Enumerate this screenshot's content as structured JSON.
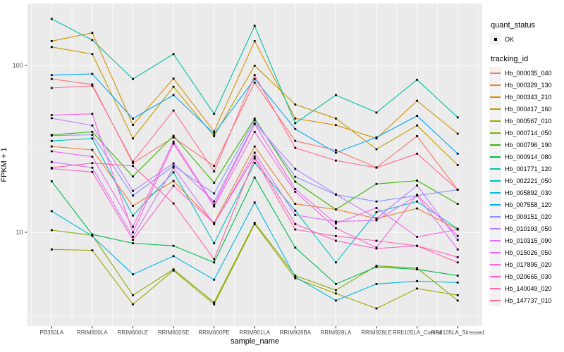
{
  "panel": {
    "bg": "#EBEBEB",
    "grid_color": "#FFFFFF",
    "tick_color": "#333333",
    "tick_label_color": "#4D4D4D",
    "legend_key_bg": "#F2F2F2",
    "point_color": "#000000"
  },
  "axes": {
    "x_title": "sample_name",
    "y_title": "FPKM + 1"
  },
  "legend": {
    "quant_status": {
      "title": "quant_status",
      "entries": [
        {
          "label": "OK",
          "marker": "black-point"
        }
      ]
    },
    "tracking_id_title": "tracking_id"
  },
  "chart_data": {
    "type": "line",
    "title": "",
    "xlabel": "sample_name",
    "ylabel": "FPKM + 1",
    "y_scale": "log10",
    "ylim": [
      2.8,
      235
    ],
    "yticks_major": [
      100,
      10
    ],
    "yticks_minor": [
      316.23,
      31.623,
      3.1623
    ],
    "grid": true,
    "legend_position": "right",
    "x_categories": [
      "PB350LA",
      "RRIM600LA",
      "RRIM600LE",
      "RRIM600SE",
      "RRIM600PE",
      "RRIM901LA",
      "RRIM928BA",
      "RRIM928LA",
      "RRIM928LE",
      "RRII105LA_Control",
      "RRII105LA_Stressed"
    ],
    "series": [
      {
        "name": "Hb_000035_040",
        "color": "#F8766D",
        "values": [
          83,
          77,
          26,
          37,
          25,
          79,
          35.3,
          31,
          24.5,
          37.7,
          18
        ]
      },
      {
        "name": "Hb_000329_130",
        "color": "#EA8331",
        "values": [
          32.7,
          31.2,
          14.4,
          20.3,
          11.4,
          32.7,
          14.8,
          13.7,
          12.1,
          13.9,
          10.4
        ]
      },
      {
        "name": "Hb_000343_210",
        "color": "#D89000",
        "values": [
          140,
          157,
          44,
          83.4,
          40.2,
          140,
          48.1,
          43.9,
          36.5,
          61.4,
          39
        ]
      },
      {
        "name": "Hb_000417_160",
        "color": "#C09B00",
        "values": [
          129,
          117,
          36.5,
          74.6,
          37.7,
          99.7,
          58.4,
          48.1,
          31.5,
          43.7,
          25.3
        ]
      },
      {
        "name": "Hb_000567_010",
        "color": "#A3A500",
        "values": [
          7.9,
          7.8,
          3.7,
          5.9,
          3.7,
          11.2,
          5.3,
          4.3,
          3.5,
          4.6,
          4.2
        ]
      },
      {
        "name": "Hb_000714_050",
        "color": "#7CAE00",
        "values": [
          10.3,
          9.6,
          4.2,
          6.0,
          3.8,
          11.4,
          5.5,
          4.5,
          6.3,
          6.1,
          3.9
        ]
      },
      {
        "name": "Hb_000796_190",
        "color": "#39B600",
        "values": [
          38.4,
          40,
          21.6,
          37.9,
          19.8,
          48.1,
          20.1,
          13.7,
          19.5,
          20.4,
          14.8
        ]
      },
      {
        "name": "Hb_000914_080",
        "color": "#00BB4E",
        "values": [
          20.2,
          9.7,
          8.6,
          8.3,
          6.6,
          21.3,
          8.1,
          4.9,
          6.2,
          6.0,
          5.5
        ]
      },
      {
        "name": "Hb_001771_120",
        "color": "#00C1A3",
        "values": [
          190,
          142,
          83,
          117,
          51.3,
          173,
          45.1,
          66.5,
          52.2,
          82.1,
          48.8
        ]
      },
      {
        "name": "Hb_002221_050",
        "color": "#00BFC4",
        "values": [
          35.3,
          36.5,
          12.6,
          22.9,
          8.6,
          26.1,
          13.5,
          6.6,
          13.2,
          15.3,
          10.5
        ]
      },
      {
        "name": "Hb_005892_030",
        "color": "#00B8E5",
        "values": [
          13.4,
          9.5,
          5.6,
          7.2,
          5.2,
          15.1,
          5.4,
          3.9,
          4.9,
          5.1,
          5.0
        ]
      },
      {
        "name": "Hb_007558_120",
        "color": "#00A9FF",
        "values": [
          87.5,
          89,
          48,
          66.5,
          39,
          83,
          41.6,
          30,
          37.1,
          49.9,
          29.6
        ]
      },
      {
        "name": "Hb_009151_020",
        "color": "#8893FF",
        "values": [
          38,
          38.4,
          16.6,
          25,
          17.1,
          47,
          21.5,
          16.8,
          15.3,
          16.6,
          18
        ]
      },
      {
        "name": "Hb_010193_050",
        "color": "#BC81FF",
        "values": [
          48.3,
          43.7,
          17.7,
          25.9,
          15.3,
          45,
          24,
          16.9,
          12.1,
          19.1,
          9.0
        ]
      },
      {
        "name": "Hb_010315_090",
        "color": "#DC71FA",
        "values": [
          26.4,
          24.4,
          9.4,
          24.4,
          11.2,
          30.0,
          12.7,
          11.6,
          11.8,
          16.6,
          7.9
        ]
      },
      {
        "name": "Hb_015026_050",
        "color": "#ED68ED",
        "values": [
          30.6,
          28.4,
          10.8,
          35.0,
          14.6,
          44.5,
          18.2,
          11.3,
          14.0,
          9.4,
          10.4
        ]
      },
      {
        "name": "Hb_017895_020",
        "color": "#F763DF",
        "values": [
          50.4,
          51.3,
          10.0,
          34.0,
          14.3,
          40.0,
          17.5,
          10.6,
          8.1,
          16.8,
          9.5
        ]
      },
      {
        "name": "Hb_020665_030",
        "color": "#FF61C9",
        "values": [
          24.1,
          23.0,
          9.0,
          19.0,
          11.3,
          28.5,
          11.2,
          8.9,
          8.0,
          8.3,
          7.1
        ]
      },
      {
        "name": "Hb_140049_020",
        "color": "#FF67B1",
        "values": [
          24.4,
          26.0,
          25.0,
          14.9,
          6.9,
          27.7,
          10.4,
          9.5,
          8.9,
          8.3,
          6.6
        ]
      },
      {
        "name": "Hb_147737_010",
        "color": "#FF6C92",
        "values": [
          73.3,
          75.5,
          26.5,
          53.7,
          23.2,
          87.5,
          32.1,
          26.9,
          24.4,
          29.6,
          18.0
        ]
      }
    ]
  }
}
